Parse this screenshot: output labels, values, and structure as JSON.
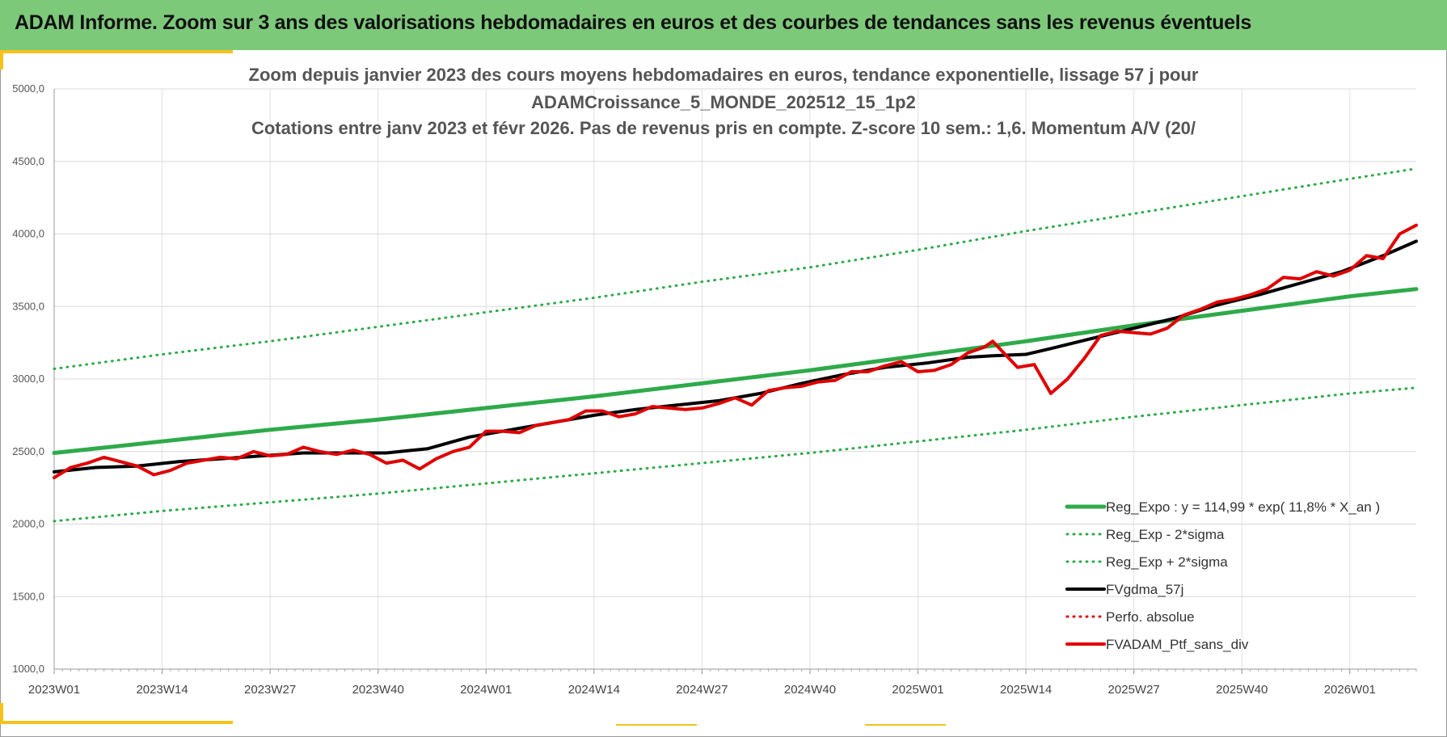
{
  "banner": {
    "title": "ADAM Informe. Zoom sur 3 ans des valorisations hebdomadaires en euros et des courbes de tendances sans les revenus éventuels"
  },
  "colors": {
    "banner_bg": "#7dc97a",
    "accent_yellow": "#f5c21b",
    "reg_expo": "#2eaa4a",
    "reg_sigma": "#2eaa4a",
    "fvgdma": "#000000",
    "perfo": "#e00000",
    "fvadam": "#e00000"
  },
  "chart_data": {
    "type": "line",
    "title_lines": [
      "Zoom depuis janvier 2023 des cours moyens hebdomadaires  en euros, tendance exponentielle, lissage 57 j pour",
      "ADAMCroissance_5_MONDE_202512_15_1p2",
      "Cotations  entre janv 2023 et févr 2026. Pas de revenus pris en compte. Z-score 10 sem.: 1,6. Momentum A/V (20/"
    ],
    "ylim": [
      1000,
      5000
    ],
    "y_ticks": [
      "1000,0",
      "1500,0",
      "2000,0",
      "2500,0",
      "3000,0",
      "3500,0",
      "4000,0",
      "4500,0",
      "5000,0"
    ],
    "x_ticks": [
      "2023W01",
      "2023W14",
      "2023W27",
      "2023W40",
      "2024W01",
      "2024W14",
      "2024W27",
      "2024W40",
      "2025W01",
      "2025W14",
      "2025W27",
      "2025W40",
      "2026W01"
    ],
    "grid": true,
    "legend_position": "bottom-right",
    "series": [
      {
        "name": "Reg_Expo : y = 114,99 * exp( 11,8% *  X_an )",
        "style": "solid",
        "width": 5,
        "color": "#2eaa4a",
        "x": [
          0,
          13,
          26,
          39,
          52,
          65,
          78,
          91,
          104,
          117,
          130,
          143,
          156,
          164
        ],
        "y": [
          2490,
          2570,
          2650,
          2720,
          2800,
          2880,
          2970,
          3060,
          3160,
          3260,
          3370,
          3470,
          3570,
          3620
        ]
      },
      {
        "name": "Reg_Exp - 2*sigma",
        "style": "dotted",
        "width": 3,
        "color": "#2eaa4a",
        "x": [
          0,
          13,
          26,
          39,
          52,
          65,
          78,
          91,
          104,
          117,
          130,
          143,
          156,
          164
        ],
        "y": [
          2020,
          2090,
          2150,
          2210,
          2280,
          2350,
          2420,
          2490,
          2570,
          2650,
          2740,
          2820,
          2900,
          2940
        ]
      },
      {
        "name": "Reg_Exp + 2*sigma",
        "style": "dotted",
        "width": 3,
        "color": "#2eaa4a",
        "x": [
          0,
          13,
          26,
          39,
          52,
          65,
          78,
          91,
          104,
          117,
          130,
          143,
          156,
          164
        ],
        "y": [
          3070,
          3170,
          3260,
          3360,
          3460,
          3560,
          3670,
          3770,
          3890,
          4020,
          4140,
          4260,
          4380,
          4450
        ]
      },
      {
        "name": "FVgdma_57j",
        "style": "solid",
        "width": 4,
        "color": "#000000",
        "x": [
          0,
          5,
          10,
          15,
          20,
          25,
          30,
          35,
          40,
          45,
          50,
          55,
          60,
          65,
          70,
          75,
          80,
          85,
          90,
          95,
          100,
          105,
          110,
          113,
          117,
          120,
          125,
          130,
          135,
          140,
          145,
          150,
          155,
          160,
          164
        ],
        "y": [
          2360,
          2390,
          2400,
          2430,
          2450,
          2470,
          2490,
          2490,
          2490,
          2520,
          2600,
          2650,
          2700,
          2750,
          2790,
          2820,
          2850,
          2900,
          2970,
          3030,
          3080,
          3110,
          3150,
          3160,
          3170,
          3210,
          3280,
          3350,
          3420,
          3510,
          3580,
          3660,
          3740,
          3850,
          3950
        ]
      },
      {
        "name": "Perfo. absolue",
        "style": "dotted",
        "width": 3,
        "color": "#e00000",
        "x": [],
        "y": []
      },
      {
        "name": "FVADAM_Ptf_sans_div",
        "style": "solid",
        "width": 4,
        "color": "#e00000",
        "x": [
          0,
          2,
          4,
          6,
          8,
          10,
          12,
          14,
          16,
          18,
          20,
          22,
          24,
          26,
          28,
          30,
          32,
          34,
          36,
          38,
          40,
          42,
          44,
          46,
          48,
          50,
          52,
          54,
          56,
          58,
          60,
          62,
          64,
          66,
          68,
          70,
          72,
          74,
          76,
          78,
          80,
          82,
          84,
          86,
          88,
          90,
          92,
          94,
          96,
          98,
          100,
          102,
          104,
          106,
          108,
          110,
          112,
          113,
          114,
          116,
          118,
          120,
          122,
          124,
          126,
          128,
          130,
          132,
          134,
          136,
          138,
          140,
          142,
          144,
          146,
          148,
          150,
          152,
          154,
          156,
          158,
          160,
          162,
          164
        ],
        "y": [
          2320,
          2390,
          2420,
          2460,
          2430,
          2400,
          2340,
          2370,
          2420,
          2440,
          2460,
          2450,
          2500,
          2470,
          2480,
          2530,
          2500,
          2480,
          2510,
          2480,
          2420,
          2440,
          2380,
          2450,
          2500,
          2530,
          2640,
          2640,
          2630,
          2680,
          2700,
          2720,
          2780,
          2780,
          2740,
          2760,
          2810,
          2800,
          2790,
          2800,
          2830,
          2870,
          2820,
          2920,
          2940,
          2950,
          2980,
          2990,
          3050,
          3050,
          3090,
          3120,
          3050,
          3060,
          3100,
          3180,
          3220,
          3260,
          3200,
          3080,
          3100,
          2900,
          3000,
          3140,
          3300,
          3330,
          3320,
          3310,
          3350,
          3440,
          3480,
          3530,
          3550,
          3580,
          3620,
          3700,
          3690,
          3740,
          3710,
          3750,
          3850,
          3830,
          4000,
          4060
        ]
      }
    ]
  }
}
